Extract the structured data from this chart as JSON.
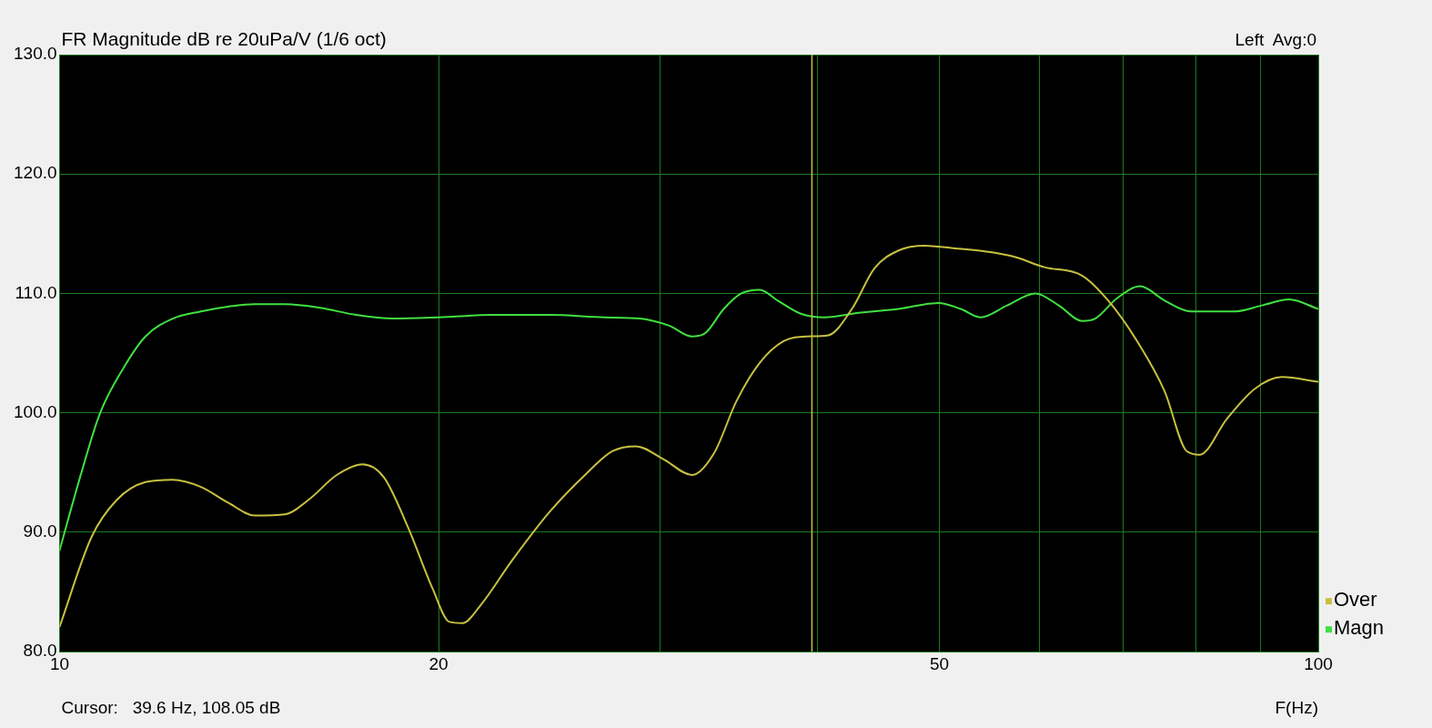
{
  "chart_data": {
    "type": "line",
    "title": "FR Magnitude dB re 20uPa/V (1/6 oct)",
    "xlabel": "F(Hz)",
    "annotations": [
      "Left  Avg:0",
      "Cursor:   39.6 Hz, 108.05 dB"
    ],
    "log": "x",
    "xlim": [
      10,
      100
    ],
    "xticks": [
      10,
      20,
      {
        "value": 30,
        "label": null
      },
      {
        "value": 40,
        "label": null
      },
      50,
      {
        "value": 60,
        "label": null
      },
      {
        "value": 70,
        "label": null
      },
      {
        "value": 80,
        "label": null
      },
      {
        "value": 90,
        "label": null
      },
      100
    ],
    "ylim": [
      80,
      130
    ],
    "yticks": [
      {
        "value": 80,
        "label": "80.0"
      },
      {
        "value": 90,
        "label": "90.0"
      },
      {
        "value": 100,
        "label": "100.0"
      },
      {
        "value": 110,
        "label": "110.0"
      },
      {
        "value": 120,
        "label": "120.0"
      },
      {
        "value": 130,
        "label": "130.0"
      }
    ],
    "grid": true,
    "legend": "bottom right",
    "marker": "none",
    "line_style": "solid",
    "ref_lines": [
      {
        "axis": "x",
        "value": 39.6,
        "color": "#c8c040"
      }
    ],
    "series": [
      {
        "name": "Over",
        "color": "#c8c040",
        "x": [
          10,
          10.6,
          11.1,
          11.7,
          12.3,
          12.95,
          13.6,
          14.3,
          15.1,
          15.8,
          16.6,
          17.4,
          18.1,
          18.9,
          19.8,
          20.4,
          20.9,
          21.6,
          22.9,
          24.5,
          26.2,
          27.5,
          28.7,
          30.2,
          31.8,
          33.1,
          34.5,
          36,
          37.6,
          39.2,
          40.8,
          42.6,
          44.4,
          46.4,
          48.7,
          51.1,
          54.5,
          57.2,
          60.6,
          64.9,
          68.1,
          71.6,
          75.5,
          78.6,
          80.5,
          84.6,
          89,
          93.6,
          100
        ],
        "values": [
          82.1,
          89.6,
          92.7,
          94.2,
          94.4,
          93.8,
          92.5,
          91.4,
          91.5,
          92.8,
          94.8,
          95.7,
          94.6,
          90.5,
          85.2,
          82.5,
          82.4,
          83.9,
          87.7,
          91.7,
          94.9,
          96.8,
          97.2,
          96.1,
          94.8,
          96.6,
          101,
          104.2,
          106,
          106.4,
          106.5,
          108.7,
          112.1,
          113.6,
          114,
          113.8,
          113.5,
          113.1,
          112.2,
          111.5,
          109.4,
          106.2,
          101.8,
          96.8,
          96.5,
          99.5,
          102,
          103,
          102.6
        ]
      },
      {
        "name": "Magn",
        "color": "#40e040",
        "x": [
          10,
          10.4,
          10.76,
          11.23,
          11.7,
          12.3,
          12.95,
          13.6,
          14.3,
          15.1,
          16.1,
          17.2,
          18.4,
          20,
          22.1,
          24.5,
          27.1,
          28.9,
          30.5,
          31.8,
          32.6,
          33.7,
          34.8,
          36,
          37.2,
          38.8,
          40.5,
          43.3,
          46.4,
          49.9,
          52,
          53.9,
          56.6,
          59.6,
          62.2,
          64.9,
          66.5,
          69.2,
          72.2,
          75.5,
          79.2,
          86,
          90.2,
          94.8,
          100
        ],
        "values": [
          88.5,
          94.9,
          99.9,
          103.7,
          106.4,
          107.9,
          108.5,
          108.9,
          109.1,
          109.1,
          108.8,
          108.2,
          107.9,
          108,
          108.2,
          108.2,
          108,
          107.9,
          107.3,
          106.4,
          106.7,
          108.7,
          110,
          110.3,
          109.4,
          108.3,
          108,
          108.4,
          108.7,
          109.2,
          108.7,
          108,
          109,
          110,
          109,
          107.7,
          107.9,
          109.6,
          110.6,
          109.4,
          108.5,
          108.5,
          109,
          109.5,
          108.7
        ]
      }
    ]
  }
}
